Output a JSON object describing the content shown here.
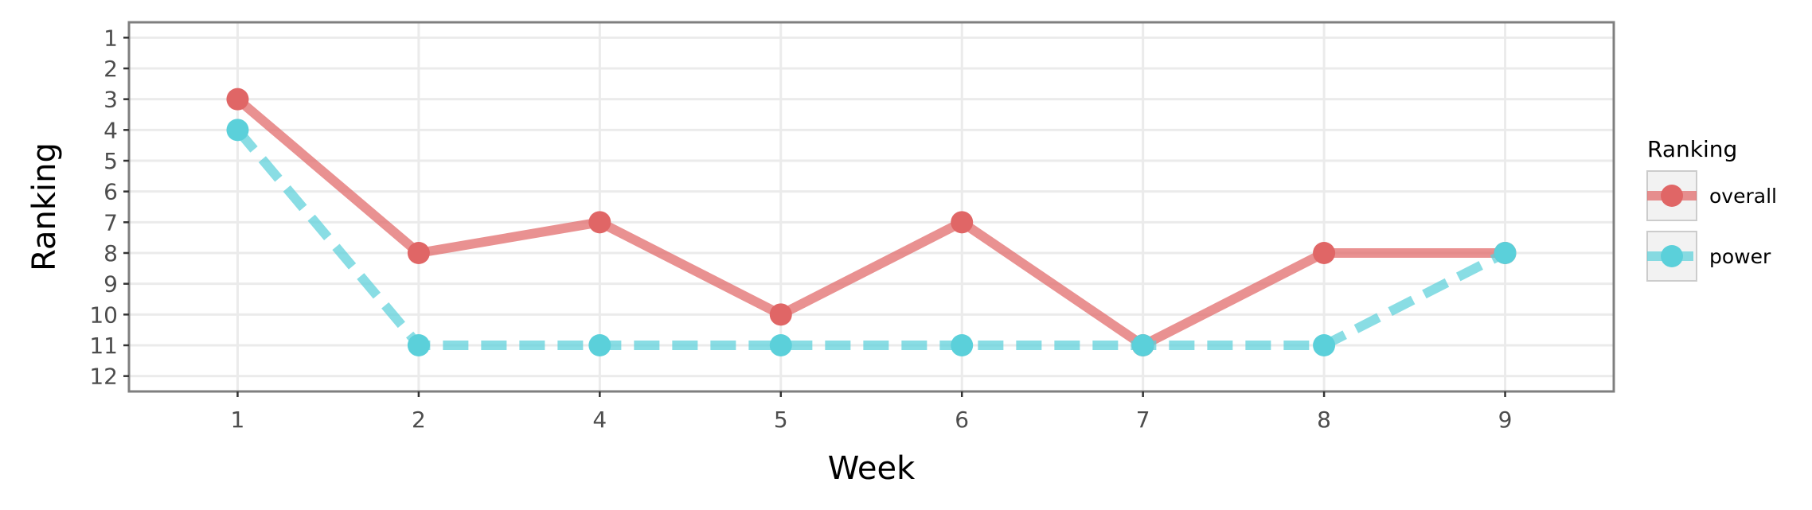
{
  "chart_data": {
    "type": "line",
    "xlabel": "Week",
    "ylabel": "Ranking",
    "categories": [
      "1",
      "2",
      "4",
      "5",
      "6",
      "7",
      "8",
      "9"
    ],
    "y_ticks": [
      1,
      2,
      3,
      4,
      5,
      6,
      7,
      8,
      9,
      10,
      11,
      12
    ],
    "ylim": [
      12.5,
      0.5
    ],
    "y_reversed": true,
    "grid": true,
    "legend": {
      "title": "Ranking",
      "placement": "right"
    },
    "series": [
      {
        "name": "overall",
        "values": [
          3,
          8,
          7,
          10,
          7,
          11,
          8,
          8
        ],
        "color": "#e06666",
        "line_style": "solid"
      },
      {
        "name": "power",
        "values": [
          4,
          11,
          11,
          11,
          11,
          11,
          11,
          8
        ],
        "color": "#5bd0da",
        "line_style": "dashed"
      }
    ]
  }
}
